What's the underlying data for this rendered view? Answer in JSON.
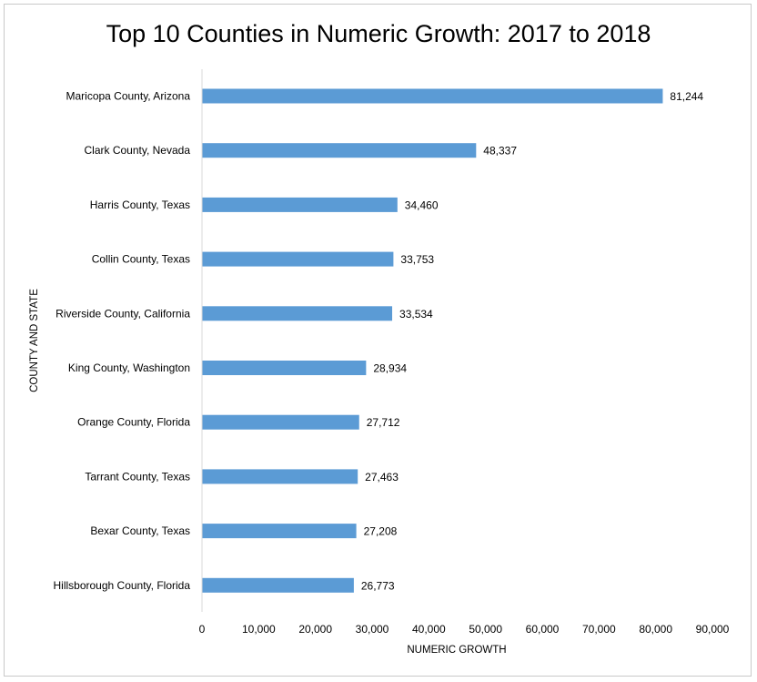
{
  "chart_data": {
    "type": "bar",
    "orientation": "horizontal",
    "title": "Top 10 Counties in Numeric Growth: 2017 to 2018",
    "xlabel": "NUMERIC GROWTH",
    "ylabel": "COUNTY AND STATE",
    "categories": [
      "Maricopa County, Arizona",
      "Clark County, Nevada",
      "Harris County, Texas",
      "Collin County, Texas",
      "Riverside County, California",
      "King County, Washington",
      "Orange County, Florida",
      "Tarrant County, Texas",
      "Bexar County, Texas",
      "Hillsborough County, Florida"
    ],
    "values": [
      81244,
      48337,
      34460,
      33753,
      33534,
      28934,
      27712,
      27463,
      27208,
      26773
    ],
    "data_labels": [
      "81,244",
      "48,337",
      "34,460",
      "33,753",
      "33,534",
      "28,934",
      "27,712",
      "27,463",
      "27,208",
      "26,773"
    ],
    "xlim": [
      0,
      90000
    ],
    "x_ticks": [
      0,
      10000,
      20000,
      30000,
      40000,
      50000,
      60000,
      70000,
      80000,
      90000
    ],
    "x_tick_labels": [
      "0",
      "10,000",
      "20,000",
      "30,000",
      "40,000",
      "50,000",
      "60,000",
      "70,000",
      "80,000",
      "90,000"
    ],
    "grid": false,
    "legend": "none",
    "bar_color": "#5b9bd5"
  }
}
